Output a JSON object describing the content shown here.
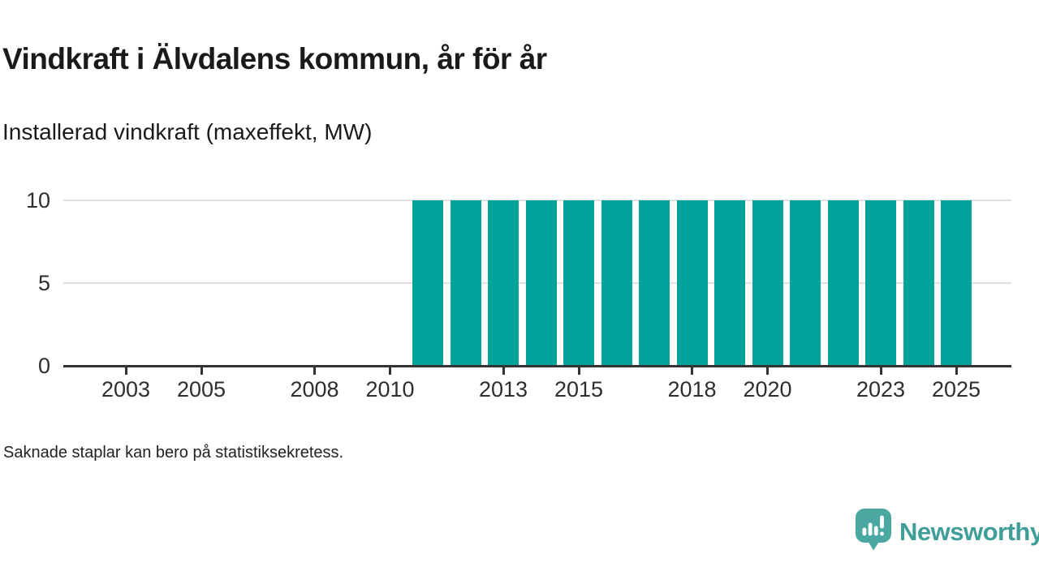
{
  "header": {
    "title": "Vindkraft i Älvdalens kommun, år för år",
    "subtitle": "Installerad vindkraft (maxeffekt, MW)"
  },
  "footer": {
    "note": "Saknade staplar kan bero på statistiksekretess."
  },
  "branding": {
    "name": "Newsworthy",
    "logo_icon": "bar-chart-speech-bubble-icon"
  },
  "colors": {
    "bar": "#00a29a",
    "gridline": "#e0e0e0",
    "axis": "#333333",
    "text": "#1a1a1a",
    "logo_text": "#3f9e99",
    "logo_icon": "#4ba7a1"
  },
  "chart_data": {
    "type": "bar",
    "title": "Vindkraft i Älvdalens kommun, år för år",
    "subtitle": "Installerad vindkraft (maxeffekt, MW)",
    "xlabel": "",
    "ylabel": "Installerad vindkraft (maxeffekt, MW)",
    "categories": [
      2002,
      2003,
      2004,
      2005,
      2006,
      2007,
      2008,
      2009,
      2010,
      2011,
      2012,
      2013,
      2014,
      2015,
      2016,
      2017,
      2018,
      2019,
      2020,
      2021,
      2022,
      2023,
      2024,
      2025
    ],
    "values": [
      null,
      null,
      null,
      null,
      null,
      null,
      null,
      null,
      null,
      10,
      10,
      10,
      10,
      10,
      10,
      10,
      10,
      10,
      10,
      10,
      10,
      10,
      10,
      10
    ],
    "unit": "MW",
    "ylim": [
      0,
      10
    ],
    "y_ticks": [
      0,
      5,
      10
    ],
    "x_tick_labels": [
      2003,
      2005,
      2008,
      2010,
      2013,
      2015,
      2018,
      2020,
      2023,
      2025
    ],
    "grid": "horizontal-only",
    "legend": "none",
    "annotation": "Bars missing for 2002–2010; constant 10 MW from 2011 through 2025"
  }
}
